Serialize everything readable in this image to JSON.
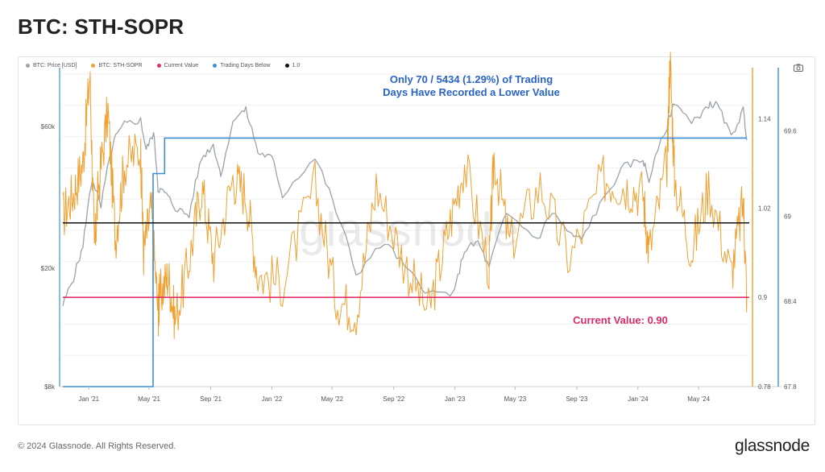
{
  "title": "BTC: STH-SOPR",
  "footer": "© 2024 Glassnode. All Rights Reserved.",
  "brand": "glassnode",
  "watermark": "glassnode",
  "legend": [
    {
      "label": "BTC: Price [USD]",
      "color": "#9aa3ab"
    },
    {
      "label": "BTC: STH-SOPR",
      "color": "#f0a030"
    },
    {
      "label": "Current Value",
      "color": "#e0306a"
    },
    {
      "label": "Trading Days Below",
      "color": "#3b8fd6"
    },
    {
      "label": "1.0",
      "color": "#111111"
    }
  ],
  "annotations": {
    "top_line1": "Only 70 / 5434 (1.29%) of Trading",
    "top_line2": "Days Have Recorded a Lower Value",
    "current": "Current Value: 0.90"
  },
  "colors": {
    "price": "#9aa3ab",
    "sopr": "#f0a030",
    "current": "#e0306a",
    "days": "#3b8fd6",
    "one": "#111111",
    "annotation_blue": "#2a63c6",
    "annotation_pink": "#d92a6a"
  },
  "chart_data": {
    "type": "line",
    "x_tick_labels": [
      "Jan '21",
      "May '21",
      "Sep '21",
      "Jan '22",
      "May '22",
      "Sep '22",
      "Jan '23",
      "May '23",
      "Sep '23",
      "Jan '24",
      "May '24"
    ],
    "x_range": [
      "2020-11-10",
      "2024-08-10"
    ],
    "y_left": {
      "ticks": [
        8000,
        20000,
        60000
      ],
      "tick_labels": [
        "$8k",
        "$20k",
        "$60k"
      ],
      "scale": "log",
      "range": [
        8000,
        90000
      ]
    },
    "y_sopr": {
      "ticks": [
        0.78,
        0.9,
        1.02,
        1.14
      ],
      "tick_labels": [
        "0.78",
        "0.9",
        "1.02",
        "1.14"
      ],
      "range": [
        0.78,
        1.2
      ]
    },
    "y_days": {
      "ticks": [
        67.8,
        68.4,
        69,
        69.6
      ],
      "tick_labels": [
        "67.8",
        "68.4",
        "69",
        "69.6"
      ],
      "range": [
        67.8,
        70.0
      ]
    },
    "series": [
      {
        "name": "BTC: Price [USD]",
        "axis": "y_left",
        "points": [
          [
            "2020-11-10",
            15000
          ],
          [
            "2020-12-01",
            18500
          ],
          [
            "2020-12-20",
            23500
          ],
          [
            "2021-01-08",
            40000
          ],
          [
            "2021-01-25",
            32000
          ],
          [
            "2021-02-20",
            54000
          ],
          [
            "2021-03-13",
            61000
          ],
          [
            "2021-04-14",
            63000
          ],
          [
            "2021-04-25",
            50000
          ],
          [
            "2021-05-10",
            57000
          ],
          [
            "2021-05-19",
            37000
          ],
          [
            "2021-06-01",
            36000
          ],
          [
            "2021-06-22",
            32000
          ],
          [
            "2021-07-20",
            30000
          ],
          [
            "2021-08-14",
            47000
          ],
          [
            "2021-09-06",
            52000
          ],
          [
            "2021-09-21",
            41000
          ],
          [
            "2021-10-20",
            65000
          ],
          [
            "2021-11-10",
            68000
          ],
          [
            "2021-12-04",
            49000
          ],
          [
            "2022-01-01",
            47000
          ],
          [
            "2022-01-22",
            35000
          ],
          [
            "2022-03-28",
            47000
          ],
          [
            "2022-05-09",
            31000
          ],
          [
            "2022-06-18",
            19000
          ],
          [
            "2022-08-14",
            24500
          ],
          [
            "2022-09-30",
            19500
          ],
          [
            "2022-11-09",
            16500
          ],
          [
            "2022-12-31",
            16500
          ],
          [
            "2023-01-20",
            23000
          ],
          [
            "2023-02-16",
            24500
          ],
          [
            "2023-03-10",
            20000
          ],
          [
            "2023-04-14",
            30500
          ],
          [
            "2023-06-15",
            25000
          ],
          [
            "2023-07-14",
            31000
          ],
          [
            "2023-08-18",
            26000
          ],
          [
            "2023-09-11",
            25000
          ],
          [
            "2023-10-24",
            34000
          ],
          [
            "2023-12-05",
            44000
          ],
          [
            "2024-01-11",
            46500
          ],
          [
            "2024-01-23",
            39500
          ],
          [
            "2024-02-28",
            60000
          ],
          [
            "2024-03-14",
            73000
          ],
          [
            "2024-04-17",
            61000
          ],
          [
            "2024-05-21",
            71000
          ],
          [
            "2024-06-07",
            71000
          ],
          [
            "2024-07-05",
            55000
          ],
          [
            "2024-07-29",
            68000
          ],
          [
            "2024-08-05",
            54000
          ]
        ]
      },
      {
        "name": "BTC: STH-SOPR",
        "axis": "y_sopr",
        "points": [
          [
            "2020-11-10",
            1.01
          ],
          [
            "2020-12-01",
            1.04
          ],
          [
            "2020-12-20",
            1.08
          ],
          [
            "2021-01-03",
            1.2
          ],
          [
            "2021-01-12",
            0.96
          ],
          [
            "2021-01-20",
            1.05
          ],
          [
            "2021-02-08",
            1.15
          ],
          [
            "2021-02-23",
            0.98
          ],
          [
            "2021-03-13",
            1.08
          ],
          [
            "2021-04-14",
            1.1
          ],
          [
            "2021-04-20",
            0.96
          ],
          [
            "2021-05-05",
            1.02
          ],
          [
            "2021-05-19",
            0.88
          ],
          [
            "2021-05-22",
            0.9
          ],
          [
            "2021-06-08",
            0.93
          ],
          [
            "2021-06-22",
            0.87
          ],
          [
            "2021-07-20",
            0.95
          ],
          [
            "2021-08-14",
            1.05
          ],
          [
            "2021-09-07",
            0.95
          ],
          [
            "2021-10-15",
            1.06
          ],
          [
            "2021-11-10",
            1.04
          ],
          [
            "2021-12-04",
            0.93
          ],
          [
            "2022-01-22",
            0.92
          ],
          [
            "2022-03-28",
            1.05
          ],
          [
            "2022-05-09",
            0.9
          ],
          [
            "2022-06-18",
            0.88
          ],
          [
            "2022-07-28",
            1.05
          ],
          [
            "2022-09-20",
            0.95
          ],
          [
            "2022-11-09",
            0.88
          ],
          [
            "2022-12-15",
            0.98
          ],
          [
            "2023-01-20",
            1.08
          ],
          [
            "2023-03-10",
            0.94
          ],
          [
            "2023-03-20",
            1.09
          ],
          [
            "2023-04-20",
            0.97
          ],
          [
            "2023-06-20",
            1.05
          ],
          [
            "2023-08-18",
            0.95
          ],
          [
            "2023-10-24",
            1.06
          ],
          [
            "2023-12-05",
            1.05
          ],
          [
            "2024-01-11",
            1.04
          ],
          [
            "2024-01-23",
            0.96
          ],
          [
            "2024-02-28",
            1.08
          ],
          [
            "2024-03-05",
            1.22
          ],
          [
            "2024-03-14",
            1.06
          ],
          [
            "2024-04-17",
            0.96
          ],
          [
            "2024-05-21",
            1.05
          ],
          [
            "2024-07-05",
            0.93
          ],
          [
            "2024-07-29",
            1.03
          ],
          [
            "2024-08-05",
            0.9
          ]
        ]
      },
      {
        "name": "Trading Days Below",
        "axis": "y_days",
        "points": [
          [
            "2020-11-10",
            67.8
          ],
          [
            "2021-05-09",
            67.8
          ],
          [
            "2021-05-09",
            69.3
          ],
          [
            "2021-06-01",
            69.3
          ],
          [
            "2021-06-01",
            69.55
          ],
          [
            "2024-08-05",
            69.55
          ]
        ]
      },
      {
        "name": "Current Value",
        "axis": "y_sopr",
        "value": 0.9
      },
      {
        "name": "1.0",
        "axis": "y_sopr",
        "value": 1.0
      }
    ]
  }
}
